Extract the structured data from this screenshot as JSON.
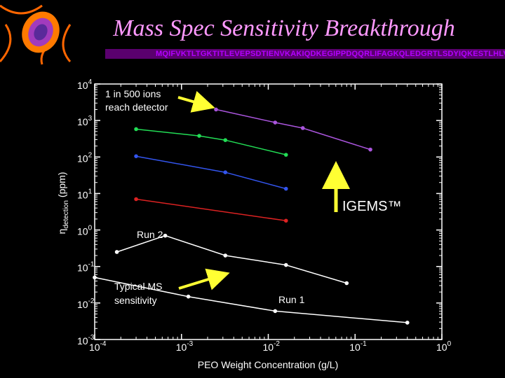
{
  "title": "Mass Spec Sensitivity Breakthrough",
  "sequence_banner": "MQIFVKTLTGKTITLEVEPSDTIENVKAKIQDKEGIPPDQQRLIFAGKQLEDGRTLSDYIQKESTLHLVLRLRG",
  "chart_data": {
    "type": "line",
    "xscale": "log",
    "yscale": "log",
    "xlim": [
      0.0001,
      1
    ],
    "ylim": [
      0.001,
      10000
    ],
    "xlabel": "PEO Weight Concentration (g/L)",
    "ylabel": {
      "symbol": "η",
      "subscript": "detection",
      "unit": "(ppm)"
    },
    "x_ticks": [
      {
        "base": "10",
        "exp": "-4",
        "value": 0.0001
      },
      {
        "base": "10",
        "exp": "-3",
        "value": 0.001
      },
      {
        "base": "10",
        "exp": "-2",
        "value": 0.01
      },
      {
        "base": "10",
        "exp": "-1",
        "value": 0.1
      },
      {
        "base": "10",
        "exp": "0",
        "value": 1
      }
    ],
    "y_ticks": [
      {
        "base": "10",
        "exp": "-3",
        "value": 0.001
      },
      {
        "base": "10",
        "exp": "-2",
        "value": 0.01
      },
      {
        "base": "10",
        "exp": "-1",
        "value": 0.1
      },
      {
        "base": "10",
        "exp": "0",
        "value": 1
      },
      {
        "base": "10",
        "exp": "1",
        "value": 10
      },
      {
        "base": "10",
        "exp": "2",
        "value": 100
      },
      {
        "base": "10",
        "exp": "3",
        "value": 1000
      },
      {
        "base": "10",
        "exp": "4",
        "value": 10000
      }
    ],
    "series": [
      {
        "name": "Run 2",
        "color": "#ffffff",
        "x": [
          0.00018,
          0.00065,
          0.0032,
          0.016,
          0.08
        ],
        "y": [
          0.25,
          0.7,
          0.2,
          0.11,
          0.035
        ]
      },
      {
        "name": "Run 1",
        "color": "#ffffff",
        "x": [
          0.0001,
          0.0012,
          0.012,
          0.4
        ],
        "y": [
          0.05,
          0.015,
          0.006,
          0.0029
        ]
      },
      {
        "name": "Red",
        "color": "#dd2222",
        "x": [
          0.0003,
          0.016
        ],
        "y": [
          7,
          1.8
        ]
      },
      {
        "name": "Blue",
        "color": "#3355ee",
        "x": [
          0.0003,
          0.0032,
          0.016
        ],
        "y": [
          105,
          38,
          13.5
        ]
      },
      {
        "name": "Green",
        "color": "#22dd55",
        "x": [
          0.0003,
          0.0016,
          0.0032,
          0.016
        ],
        "y": [
          580,
          380,
          290,
          115
        ]
      },
      {
        "name": "Purple",
        "color": "#aa55dd",
        "x": [
          0.0025,
          0.012,
          0.025,
          0.15
        ],
        "y": [
          2000,
          880,
          620,
          160
        ]
      }
    ],
    "annotations": {
      "top_left": [
        "1 in 500 ions",
        "reach detector"
      ],
      "igems": "IGEMS™",
      "typical": [
        "Typical MS",
        "sensitivity"
      ],
      "run2": "Run 2",
      "run1": "Run 1"
    },
    "colors": {
      "arrows": "#ffff33",
      "axes": "#ffffff"
    }
  }
}
